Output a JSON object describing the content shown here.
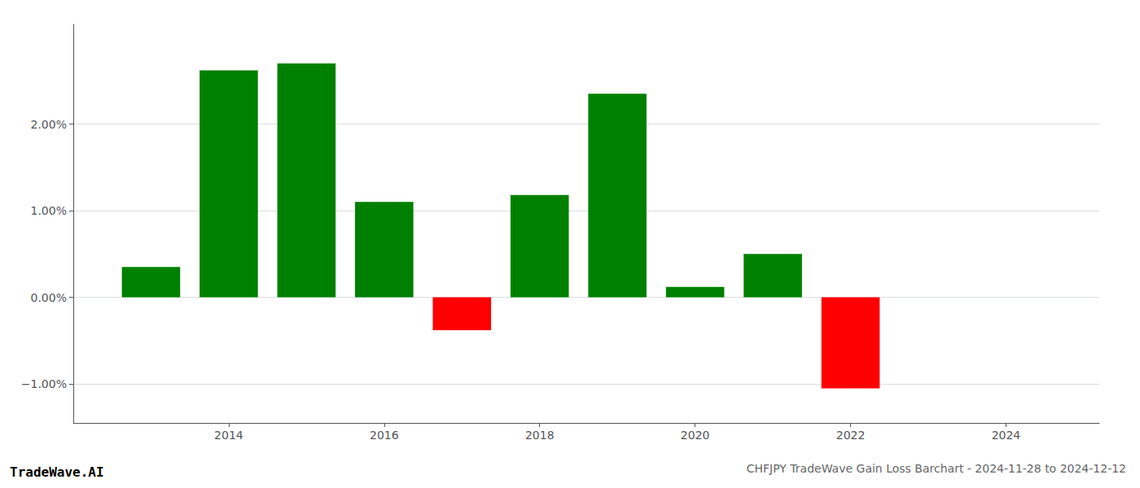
{
  "chart_data": {
    "type": "bar",
    "title": "CHFJPY TradeWave Gain Loss Barchart - 2024-11-28 to 2024-12-12",
    "annotations": [
      "TradeWave.AI"
    ],
    "x": [
      2013,
      2014,
      2015,
      2016,
      2017,
      2018,
      2019,
      2020,
      2021,
      2022,
      2023
    ],
    "values": [
      0.35,
      2.62,
      2.7,
      1.1,
      -0.38,
      1.18,
      2.35,
      0.12,
      0.5,
      -1.05,
      0.0
    ],
    "colors": [
      "#008000",
      "#008000",
      "#008000",
      "#008000",
      "#ff0000",
      "#008000",
      "#008000",
      "#008000",
      "#008000",
      "#ff0000",
      "#008000"
    ],
    "xlim": [
      2012.0,
      2025.2
    ],
    "xticks": [
      2014,
      2016,
      2018,
      2020,
      2022,
      2024
    ],
    "ylim": [
      -1.45,
      3.15
    ],
    "yticks": [
      {
        "value": -1.0,
        "label": "−1.00%"
      },
      {
        "value": 0.0,
        "label": "0.00%"
      },
      {
        "value": 1.0,
        "label": "1.00%"
      },
      {
        "value": 2.0,
        "label": "2.00%"
      }
    ],
    "grid": true
  }
}
